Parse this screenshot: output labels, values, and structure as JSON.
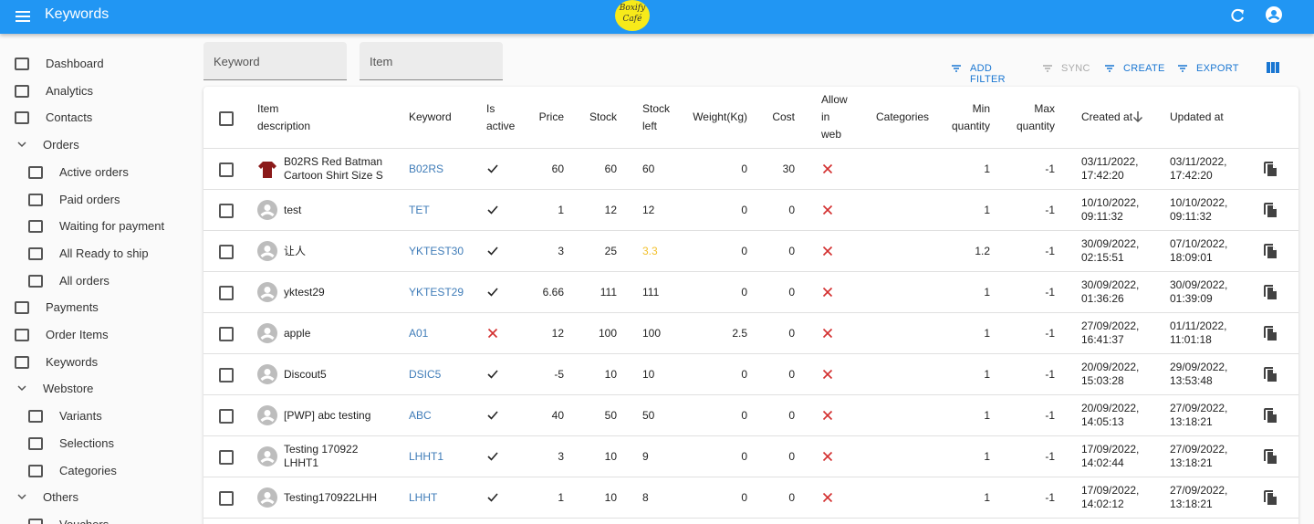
{
  "appbar": {
    "title": "Keywords",
    "logo": [
      "Boxify",
      "Café"
    ]
  },
  "sidebar": [
    {
      "label": "Dashboard"
    },
    {
      "label": "Analytics"
    },
    {
      "label": "Contacts"
    },
    {
      "label": "Orders",
      "group": true
    },
    {
      "label": "Active orders",
      "nested": true
    },
    {
      "label": "Paid orders",
      "nested": true
    },
    {
      "label": "Waiting for payment",
      "nested": true
    },
    {
      "label": "All Ready to ship",
      "nested": true
    },
    {
      "label": "All orders",
      "nested": true
    },
    {
      "label": "Payments"
    },
    {
      "label": "Order Items"
    },
    {
      "label": "Keywords",
      "active": true
    },
    {
      "label": "Webstore",
      "group": true
    },
    {
      "label": "Variants",
      "nested": true
    },
    {
      "label": "Selections",
      "nested": true
    },
    {
      "label": "Categories",
      "nested": true
    },
    {
      "label": "Others",
      "group": true
    },
    {
      "label": "Vouchers",
      "nested": true
    }
  ],
  "filters": [
    "Keyword",
    "Item"
  ],
  "toolbar": [
    {
      "label": "ADD FILTER"
    },
    {
      "label": "SYNC",
      "disabled": true
    },
    {
      "label": "CREATE"
    },
    {
      "label": "EXPORT"
    }
  ],
  "table": {
    "headers": [
      "Item description",
      "Keyword",
      "Is active",
      "Price",
      "Stock",
      "Stock left",
      "Weight(Kg)",
      "Cost",
      "Allow in web",
      "Categories",
      "Min quantity",
      "Max quantity",
      "Created at",
      "Updated at"
    ],
    "rows": [
      {
        "description": "B02RS Red Batman Cartoon Shirt Size S",
        "has_photo": true,
        "keyword": "B02RS",
        "is_active": true,
        "price": 60,
        "stock": 60,
        "stock_left": 60,
        "weight": 0,
        "cost": 30,
        "allow_in_web": false,
        "min_quantity": 1,
        "max_quantity": -1,
        "created_at": "03/11/2022, 17:42:20",
        "updated_at": "03/11/2022, 17:42:20"
      },
      {
        "description": "test",
        "keyword": "TET",
        "is_active": true,
        "price": 1,
        "stock": 12,
        "stock_left": 12,
        "weight": 0,
        "cost": 0,
        "allow_in_web": false,
        "min_quantity": 1,
        "max_quantity": -1,
        "created_at": "10/10/2022, 09:11:32",
        "updated_at": "10/10/2022, 09:11:32"
      },
      {
        "description": "让人",
        "keyword": "YKTEST30",
        "is_active": true,
        "price": 3,
        "stock": 25,
        "stock_left": 3.3,
        "stock_left_warning": true,
        "weight": 0,
        "cost": 0,
        "allow_in_web": false,
        "min_quantity": 1.2,
        "max_quantity": -1,
        "created_at": "30/09/2022, 02:15:51",
        "updated_at": "07/10/2022, 18:09:01"
      },
      {
        "description": "yktest29",
        "keyword": "YKTEST29",
        "is_active": true,
        "price": 6.66,
        "stock": 111,
        "stock_left": 111,
        "weight": 0,
        "cost": 0,
        "allow_in_web": false,
        "min_quantity": 1,
        "max_quantity": -1,
        "created_at": "30/09/2022, 01:36:26",
        "updated_at": "30/09/2022, 01:39:09"
      },
      {
        "description": "apple",
        "keyword": "A01",
        "is_active": false,
        "price": 12,
        "stock": 100,
        "stock_left": 100,
        "weight": 2.5,
        "cost": 0,
        "allow_in_web": false,
        "min_quantity": 1,
        "max_quantity": -1,
        "created_at": "27/09/2022, 16:41:37",
        "updated_at": "01/11/2022, 11:01:18"
      },
      {
        "description": "Discout5",
        "keyword": "DSIC5",
        "is_active": true,
        "price": -5,
        "stock": 10,
        "stock_left": 10,
        "weight": 0,
        "cost": 0,
        "allow_in_web": false,
        "min_quantity": 1,
        "max_quantity": -1,
        "created_at": "20/09/2022, 15:03:28",
        "updated_at": "29/09/2022, 13:53:48"
      },
      {
        "description": "[PWP] abc testing",
        "keyword": "ABC",
        "is_active": true,
        "price": 40,
        "stock": 50,
        "stock_left": 50,
        "weight": 0,
        "cost": 0,
        "allow_in_web": false,
        "min_quantity": 1,
        "max_quantity": -1,
        "created_at": "20/09/2022, 14:05:13",
        "updated_at": "27/09/2022, 13:18:21"
      },
      {
        "description": "Testing 170922 LHHT1",
        "keyword": "LHHT1",
        "is_active": true,
        "price": 3,
        "stock": 10,
        "stock_left": 9,
        "weight": 0,
        "cost": 0,
        "allow_in_web": false,
        "min_quantity": 1,
        "max_quantity": -1,
        "created_at": "17/09/2022, 14:02:44",
        "updated_at": "27/09/2022, 13:18:21"
      },
      {
        "description": "Testing170922LHH",
        "keyword": "LHHT",
        "is_active": true,
        "price": 1,
        "stock": 10,
        "stock_left": 8,
        "weight": 0,
        "cost": 0,
        "allow_in_web": false,
        "min_quantity": 1,
        "max_quantity": -1,
        "created_at": "17/09/2022, 14:02:12",
        "updated_at": "27/09/2022, 13:18:21"
      }
    ]
  }
}
